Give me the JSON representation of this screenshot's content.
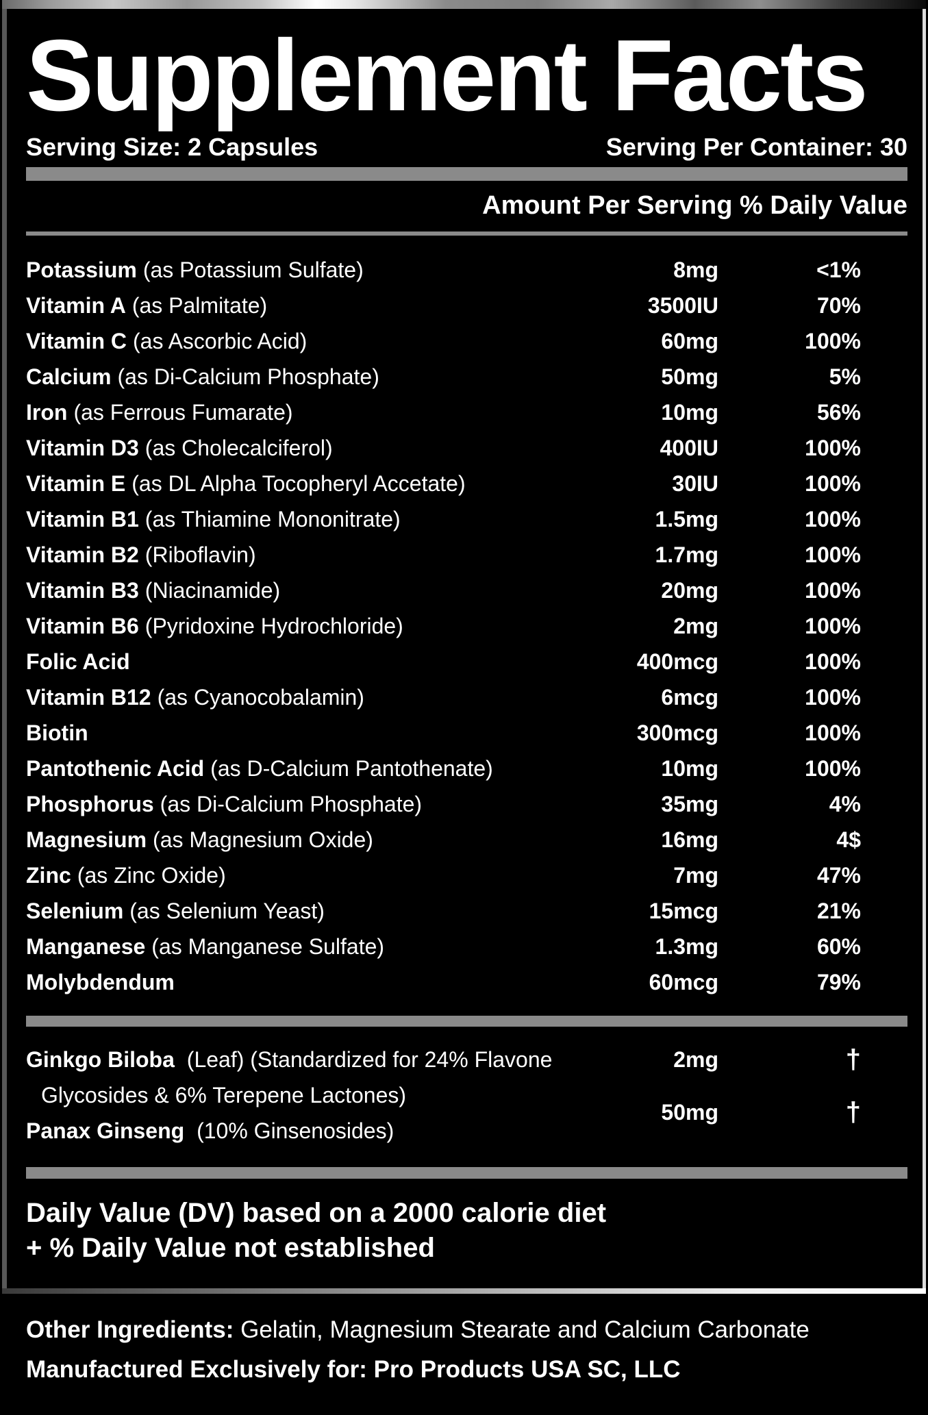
{
  "colors": {
    "background": "#000000",
    "text": "#ffffff",
    "separator": "#8a8a8a"
  },
  "header": {
    "title": "Supplement Facts",
    "serving_size": "Serving Size: 2 Capsules",
    "servings_per_container": "Serving Per Container: 30",
    "columns_header": "Amount Per Serving % Daily Value"
  },
  "nutrients": [
    {
      "name": "Potassium",
      "detail": "(as Potassium Sulfate)",
      "amount": "8mg",
      "dv": "<1%"
    },
    {
      "name": "Vitamin A",
      "detail": "(as Palmitate)",
      "amount": "3500IU",
      "dv": "70%"
    },
    {
      "name": "Vitamin C",
      "detail": "(as Ascorbic Acid)",
      "amount": "60mg",
      "dv": "100%"
    },
    {
      "name": "Calcium",
      "detail": "(as Di-Calcium Phosphate)",
      "amount": "50mg",
      "dv": "5%"
    },
    {
      "name": "Iron",
      "detail": "(as Ferrous Fumarate)",
      "amount": "10mg",
      "dv": "56%"
    },
    {
      "name": "Vitamin D3",
      "detail": "(as Cholecalciferol)",
      "amount": "400IU",
      "dv": "100%"
    },
    {
      "name": "Vitamin E",
      "detail": "(as DL Alpha Tocopheryl Accetate)",
      "amount": "30IU",
      "dv": "100%"
    },
    {
      "name": "Vitamin B1",
      "detail": "(as Thiamine Mononitrate)",
      "amount": "1.5mg",
      "dv": "100%"
    },
    {
      "name": "Vitamin B2",
      "detail": "(Riboflavin)",
      "amount": "1.7mg",
      "dv": "100%"
    },
    {
      "name": "Vitamin B3",
      "detail": "(Niacinamide)",
      "amount": "20mg",
      "dv": "100%"
    },
    {
      "name": "Vitamin B6",
      "detail": "(Pyridoxine Hydrochloride)",
      "amount": "2mg",
      "dv": "100%"
    },
    {
      "name": "Folic Acid",
      "detail": "",
      "amount": "400mcg",
      "dv": "100%"
    },
    {
      "name": "Vitamin B12",
      "detail": "(as Cyanocobalamin)",
      "amount": "6mcg",
      "dv": "100%"
    },
    {
      "name": "Biotin",
      "detail": "",
      "amount": "300mcg",
      "dv": "100%"
    },
    {
      "name": "Pantothenic Acid",
      "detail": "(as D-Calcium Pantothenate)",
      "amount": "10mg",
      "dv": "100%"
    },
    {
      "name": "Phosphorus",
      "detail": "(as Di-Calcium Phosphate)",
      "amount": "35mg",
      "dv": "4%"
    },
    {
      "name": "Magnesium",
      "detail": "(as Magnesium Oxide)",
      "amount": "16mg",
      "dv": "4$"
    },
    {
      "name": "Zinc",
      "detail": "(as Zinc Oxide)",
      "amount": "7mg",
      "dv": "47%"
    },
    {
      "name": "Selenium",
      "detail": "(as Selenium Yeast)",
      "amount": "15mcg",
      "dv": "21%"
    },
    {
      "name": "Manganese",
      "detail": "(as Manganese Sulfate)",
      "amount": "1.3mg",
      "dv": "60%"
    },
    {
      "name": "Molybdendum",
      "detail": "",
      "amount": "60mcg",
      "dv": "79%"
    }
  ],
  "botanicals": [
    {
      "name": "Ginkgo Biloba",
      "detail_line1": "(Leaf) (Standardized for 24% Flavone",
      "detail_line2": "Glycosides & 6% Terepene Lactones)",
      "amount": "2mg",
      "dv": "†"
    },
    {
      "name": "Panax Ginseng",
      "detail_line1": "(10% Ginsenosides)",
      "amount": "50mg",
      "dv": "†"
    }
  ],
  "footnotes": {
    "line1": "Daily Value (DV) based on a 2000 calorie diet",
    "line2": "+ % Daily Value not established"
  },
  "footer": {
    "other_ingredients_label": "Other Ingredients:",
    "other_ingredients_value": "Gelatin, Magnesium Stearate and Calcium Carbonate",
    "manufactured_line": "Manufactured Exclusively for: Pro Products USA SC, LLC"
  }
}
